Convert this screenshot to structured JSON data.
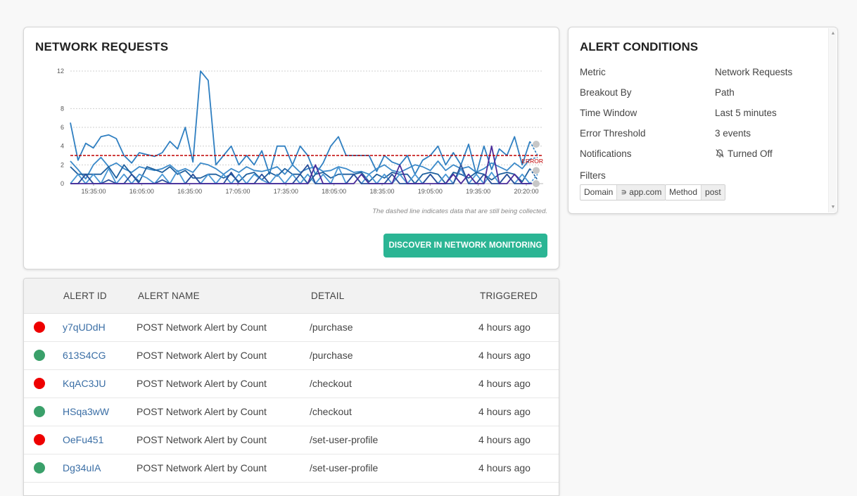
{
  "network": {
    "title": "NETWORK REQUESTS",
    "note": "The dashed line indicates data that are still being collected.",
    "discover_label": "DISCOVER IN NETWORK MONITORING"
  },
  "chart_data": {
    "type": "line",
    "title": "",
    "xlabel": "",
    "ylabel": "",
    "yticks": [
      0,
      2,
      4,
      6,
      8,
      12
    ],
    "ylim": [
      0,
      12
    ],
    "xticks": [
      "15:35:00",
      "16:05:00",
      "16:35:00",
      "17:05:00",
      "17:35:00",
      "18:05:00",
      "18:35:00",
      "19:05:00",
      "19:35:00",
      "20:20:00"
    ],
    "grid": true,
    "threshold": {
      "value": 3,
      "label": "ERROR",
      "color": "#c00000"
    },
    "series": [
      {
        "color": "#2f7fc1",
        "values": [
          6.5,
          2.5,
          4.3,
          3.8,
          5,
          5.2,
          4.8,
          3,
          2.2,
          3.3,
          3.1,
          2.9,
          3.3,
          4.5,
          3.7,
          6,
          2.3,
          12,
          11,
          2,
          3,
          4,
          2,
          3,
          2,
          3.5,
          1,
          4,
          4,
          2,
          4,
          3,
          1,
          2.2,
          4,
          5,
          3,
          3,
          3,
          3,
          1.3,
          3,
          2.3,
          2,
          3,
          1,
          2.5,
          3,
          4,
          2,
          3.3,
          2,
          4.2,
          1,
          4,
          1.5,
          3.7,
          3,
          5,
          2,
          4.5,
          3
        ]
      },
      {
        "color": "#3c8ac9",
        "values": [
          2.4,
          1.5,
          0.5,
          2,
          2.8,
          1.8,
          2.2,
          1.6,
          1.2,
          1.8,
          1.6,
          1.4,
          1.6,
          2,
          1.3,
          1.6,
          1.2,
          2.2,
          2,
          1.6,
          1,
          1.6,
          1.2,
          1.8,
          1.4,
          1.3,
          1.5,
          1.8,
          1,
          2,
          1.2,
          1.6,
          1.8,
          1.3,
          1.4,
          1.8,
          1.6,
          1.2,
          1.3,
          1,
          1.6,
          2,
          1.4,
          1.2,
          1.6,
          2,
          1.8,
          1.4,
          2.4,
          1.4,
          2,
          1.6,
          1.8,
          1.2,
          1.6,
          2.2,
          1.8,
          1.4,
          2.2,
          1.6,
          2.6,
          2.8
        ]
      },
      {
        "color": "#1e5f9e",
        "values": [
          1.8,
          1,
          1,
          1,
          1,
          1.8,
          0.6,
          2,
          1,
          0.2,
          1.8,
          1.5,
          1.2,
          1.8,
          1,
          1.4,
          0.6,
          0.6,
          1,
          1,
          0.6,
          1,
          0.2,
          1,
          1.2,
          0.4,
          1.2,
          0.8,
          1.6,
          1,
          1,
          0,
          1,
          1.2,
          0.6,
          1,
          1,
          1,
          1.2,
          0.2,
          1,
          0.6,
          1.2,
          1,
          1,
          0,
          1,
          1.2,
          1,
          0,
          1.2,
          1,
          0.6,
          1.2,
          1,
          0.4,
          1,
          1.2,
          1,
          0.2,
          1.6,
          0.4
        ]
      },
      {
        "color": "#4a97d4",
        "values": [
          0,
          1,
          0,
          1,
          0,
          1.6,
          0,
          1,
          0,
          1,
          0.6,
          0,
          1,
          0,
          1.4,
          0,
          1,
          0,
          1,
          0,
          1,
          0,
          1,
          0,
          1,
          0.4,
          0,
          1,
          0,
          1,
          0,
          1,
          0,
          1,
          0,
          1.8,
          0,
          1,
          0,
          1,
          0,
          1,
          0,
          1,
          0,
          1,
          0,
          1,
          0,
          1,
          0,
          1.6,
          0,
          1,
          0,
          1.2,
          0,
          1,
          0,
          1,
          0,
          1
        ]
      },
      {
        "color": "#2a4f99",
        "values": [
          0,
          0,
          1,
          0,
          0,
          0.4,
          0,
          0,
          1,
          0,
          0,
          0,
          0.4,
          0,
          0,
          0,
          1,
          0,
          0,
          0,
          0,
          1.2,
          0,
          0,
          0,
          1,
          0,
          0,
          0,
          0,
          1,
          2,
          0,
          0,
          0,
          0,
          0,
          1,
          0,
          0,
          0,
          0,
          1,
          0,
          0,
          0,
          0,
          1,
          0,
          0,
          0,
          2,
          0,
          0,
          1,
          0,
          0,
          1,
          0,
          0,
          0,
          0
        ]
      },
      {
        "color": "#4a2c9a",
        "values": [
          0,
          0,
          0,
          0,
          0,
          0,
          0,
          0,
          0,
          0,
          0,
          0,
          0,
          0,
          0,
          0,
          0,
          0,
          0,
          0,
          0,
          0,
          0,
          0,
          0,
          0,
          0,
          0,
          0,
          0,
          0,
          0,
          2,
          0,
          0,
          0,
          0,
          0,
          1,
          0,
          0,
          0,
          0,
          2,
          0,
          0,
          0,
          0,
          0,
          0,
          1,
          0,
          1,
          0,
          0,
          4,
          0,
          0,
          1,
          0,
          0,
          0
        ]
      }
    ]
  },
  "alert": {
    "title": "ALERT CONDITIONS",
    "conditions": [
      {
        "label": "Metric",
        "value": "Network Requests"
      },
      {
        "label": "Breakout By",
        "value": "Path"
      },
      {
        "label": "Time Window",
        "value": "Last 5 minutes"
      },
      {
        "label": "Error Threshold",
        "value": "3 events"
      },
      {
        "label": "Notifications",
        "value": "Turned Off",
        "icon": "bell-off-icon"
      }
    ],
    "filters_label": "Filters",
    "filters": [
      {
        "key": "Domain",
        "value": "∍ app.com"
      },
      {
        "key": "Method",
        "value": "post"
      }
    ]
  },
  "table": {
    "headers": [
      "ALERT ID",
      "ALERT NAME",
      "DETAIL",
      "TRIGGERED"
    ],
    "colors": {
      "red": "#ee0000",
      "green": "#3aa06a"
    },
    "rows": [
      {
        "status": "red",
        "id": "y7qUDdH",
        "name": "POST Network Alert by Count",
        "detail": "/purchase",
        "triggered": "4 hours ago"
      },
      {
        "status": "green",
        "id": "613S4CG",
        "name": "POST Network Alert by Count",
        "detail": "/purchase",
        "triggered": "4 hours ago"
      },
      {
        "status": "red",
        "id": "KqAC3JU",
        "name": "POST Network Alert by Count",
        "detail": "/checkout",
        "triggered": "4 hours ago"
      },
      {
        "status": "green",
        "id": "HSqa3wW",
        "name": "POST Network Alert by Count",
        "detail": "/checkout",
        "triggered": "4 hours ago"
      },
      {
        "status": "red",
        "id": "OeFu451",
        "name": "POST Network Alert by Count",
        "detail": "/set-user-profile",
        "triggered": "4 hours ago"
      },
      {
        "status": "green",
        "id": "Dg34uIA",
        "name": "POST Network Alert by Count",
        "detail": "/set-user-profile",
        "triggered": "4 hours ago"
      }
    ]
  }
}
